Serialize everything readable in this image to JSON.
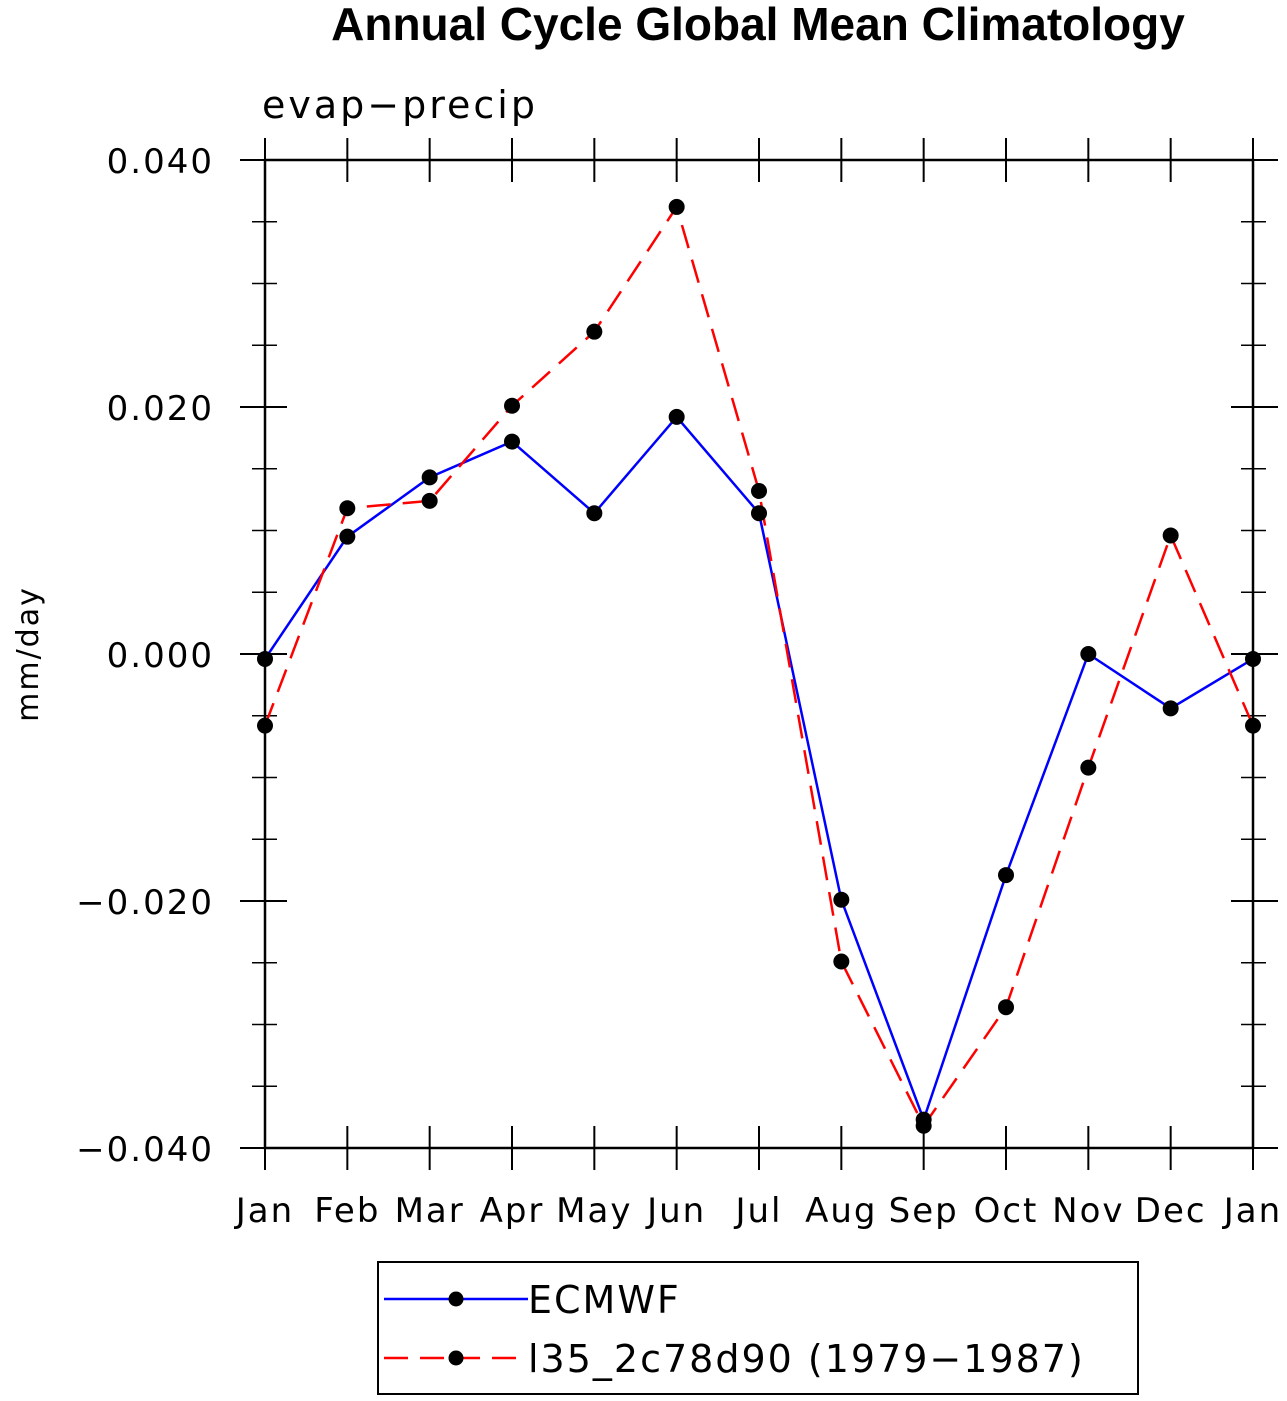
{
  "chart_data": {
    "type": "line",
    "title": "Annual Cycle Global Mean Climatology",
    "subtitle": "evap−precip",
    "ylabel": "mm/day",
    "xlabel": "",
    "categories": [
      "Jan",
      "Feb",
      "Mar",
      "Apr",
      "May",
      "Jun",
      "Jul",
      "Aug",
      "Sep",
      "Oct",
      "Nov",
      "Dec",
      "Jan"
    ],
    "ylim": [
      -0.04,
      0.04
    ],
    "yticks": [
      -0.04,
      -0.02,
      0.0,
      0.02,
      0.04
    ],
    "ytick_labels": [
      "−0.040",
      "−0.020",
      "0.000",
      "0.020",
      "0.040"
    ],
    "grid": false,
    "legend_position": "bottom",
    "series": [
      {
        "name": "ECMWF",
        "color": "#0000ff",
        "dash": "solid",
        "marker": "filled-circle",
        "values": [
          -0.0004,
          0.0095,
          0.0143,
          0.0172,
          0.0114,
          0.0192,
          0.0114,
          -0.0199,
          -0.0377,
          -0.0179,
          0.0,
          -0.0044,
          -0.0004
        ]
      },
      {
        "name": "l35_2c78d90 (1979−1987)",
        "color": "#ff0000",
        "dash": "dashed",
        "marker": "filled-circle",
        "values": [
          -0.0058,
          0.0118,
          0.0124,
          0.0201,
          0.0261,
          0.0362,
          0.0132,
          -0.0249,
          -0.0382,
          -0.0286,
          -0.0092,
          0.0096,
          -0.0058
        ]
      }
    ]
  }
}
